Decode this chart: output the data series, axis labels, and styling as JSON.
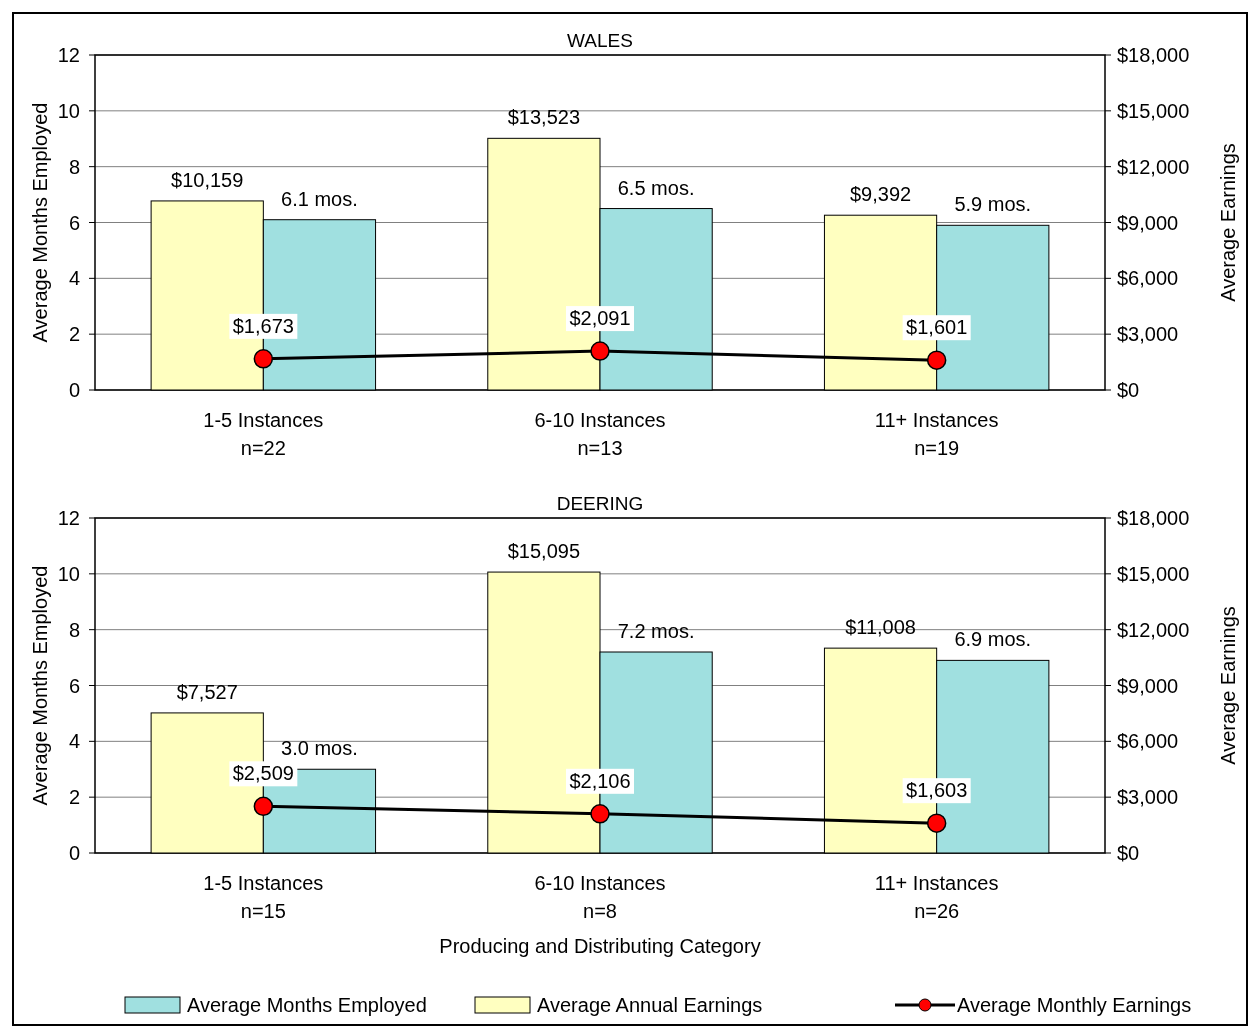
{
  "chart_data": [
    {
      "type": "bar",
      "title": "WALES",
      "categories": [
        "1-5 Instances\nn=22",
        "6-10 Instances\nn=13",
        "11+ Instances\nn=19"
      ],
      "ylabel": "Average Months Employed",
      "y2label": "Average Earnings",
      "ylim": [
        0,
        12
      ],
      "yticks": [
        0,
        2,
        4,
        6,
        8,
        10,
        12
      ],
      "y2lim": [
        0,
        18000
      ],
      "y2ticks": [
        {
          "value": 0,
          "label": "$0"
        },
        {
          "value": 3000,
          "label": "$3,000"
        },
        {
          "value": 6000,
          "label": "$6,000"
        },
        {
          "value": 9000,
          "label": "$9,000"
        },
        {
          "value": 12000,
          "label": "$12,000"
        },
        {
          "value": 15000,
          "label": "$15,000"
        },
        {
          "value": 18000,
          "label": "$18,000"
        }
      ],
      "grid": "y",
      "marker": "circle",
      "series": [
        {
          "color": "#ffffc0",
          "axis": "y2",
          "values": [
            10159,
            13523,
            9392
          ],
          "value_labels": [
            "$10,159",
            "$13,523",
            "$9,392"
          ]
        },
        {
          "color": "#a0e0e0",
          "values": [
            6.1,
            6.5,
            5.9
          ],
          "value_labels": [
            "6.1 mos.",
            "6.5 mos.",
            "5.9 mos."
          ]
        },
        {
          "type": "line",
          "color": "#000000",
          "axis": "y2",
          "values": [
            1673,
            2091,
            1601
          ],
          "value_labels": [
            "$1,673",
            "$2,091",
            "$1,601"
          ]
        }
      ]
    },
    {
      "type": "bar",
      "title": "DEERING",
      "categories": [
        "1-5 Instances\nn=15",
        "6-10 Instances\nn=8",
        "11+ Instances\nn=26"
      ],
      "xlabel": "Producing and Distributing Category",
      "ylabel": "Average Months Employed",
      "y2label": "Average Earnings",
      "ylim": [
        0,
        12
      ],
      "yticks": [
        0,
        2,
        4,
        6,
        8,
        10,
        12
      ],
      "y2lim": [
        0,
        18000
      ],
      "y2ticks": [
        {
          "value": 0,
          "label": "$0"
        },
        {
          "value": 3000,
          "label": "$3,000"
        },
        {
          "value": 6000,
          "label": "$6,000"
        },
        {
          "value": 9000,
          "label": "$9,000"
        },
        {
          "value": 12000,
          "label": "$12,000"
        },
        {
          "value": 15000,
          "label": "$15,000"
        },
        {
          "value": 18000,
          "label": "$18,000"
        }
      ],
      "grid": "y",
      "legend": "bottom",
      "marker": "circle",
      "series": [
        {
          "name": "Average Annual Earnings",
          "color": "#ffffc0",
          "axis": "y2",
          "values": [
            7527,
            15095,
            11008
          ],
          "value_labels": [
            "$7,527",
            "$15,095",
            "$11,008"
          ]
        },
        {
          "name": "Average Months Employed",
          "color": "#a0e0e0",
          "values": [
            3.0,
            7.2,
            6.9
          ],
          "value_labels": [
            "3.0 mos.",
            "7.2 mos.",
            "6.9 mos."
          ]
        },
        {
          "name": "Average Monthly Earnings",
          "type": "line",
          "color": "#000000",
          "axis": "y2",
          "values": [
            2509,
            2106,
            1603
          ],
          "value_labels": [
            "$2,509",
            "$2,106",
            "$1,603"
          ]
        }
      ]
    }
  ]
}
